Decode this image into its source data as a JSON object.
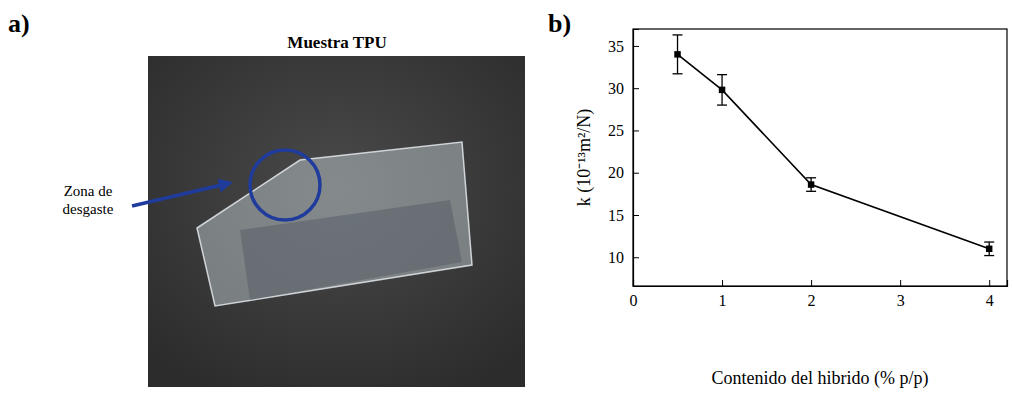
{
  "figure_a": {
    "label": "a)",
    "title": "Muestra TPU",
    "annotation": "Zona de desgaste"
  },
  "chart_data": {
    "type": "line",
    "title": "b)",
    "xlabel": "Contenido del hibrido (% p/p)",
    "ylabel": "k (10⁻¹³m²/N)",
    "x": [
      0.5,
      1,
      2,
      4
    ],
    "values": [
      34,
      29.8,
      18.6,
      11
    ],
    "errors": [
      2.3,
      1.8,
      0.8,
      0.8
    ],
    "color": "#000000",
    "marker": "square",
    "line_style": "solid",
    "xlim": [
      0,
      4.2
    ],
    "xticks": [
      0,
      1,
      2,
      3,
      4
    ],
    "ylim": [
      6.6,
      37
    ],
    "yticks": [
      10,
      15,
      20,
      25,
      30,
      35
    ],
    "grid": false
  }
}
